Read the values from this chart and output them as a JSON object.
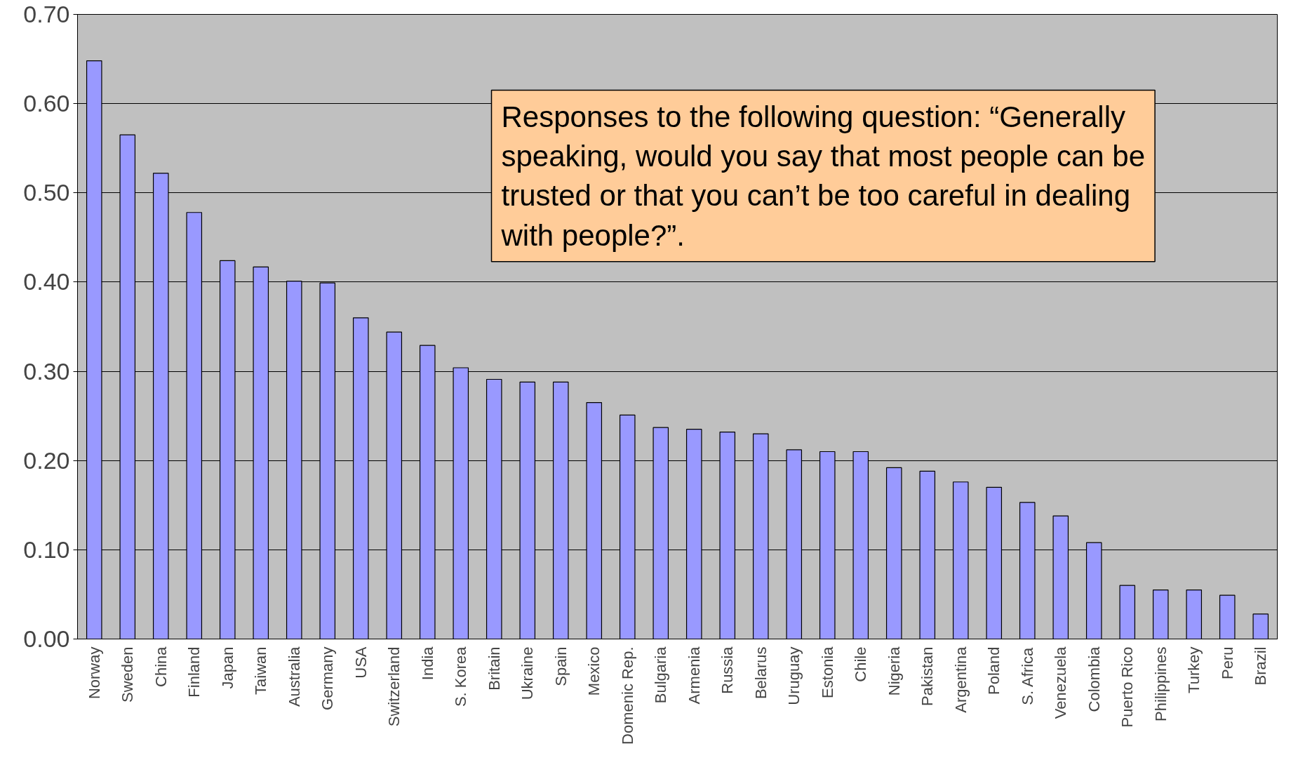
{
  "chart_data": {
    "type": "bar",
    "categories": [
      "Norway",
      "Sweden",
      "China",
      "Finland",
      "Japan",
      "Taiwan",
      "Australia",
      "Germany",
      "USA",
      "Switzerland",
      "India",
      "S. Korea",
      "Britain",
      "Ukraine",
      "Spain",
      "Mexico",
      "Domenic Rep.",
      "Bulgaria",
      "Armenia",
      "Russia",
      "Belarus",
      "Uruguay",
      "Estonia",
      "Chile",
      "Nigeria",
      "Pakistan",
      "Argentina",
      "Poland",
      "S. Africa",
      "Venezuela",
      "Colombia",
      "Puerto Rico",
      "Philippines",
      "Turkey",
      "Peru",
      "Brazil"
    ],
    "values": [
      0.648,
      0.565,
      0.522,
      0.478,
      0.424,
      0.417,
      0.401,
      0.399,
      0.36,
      0.344,
      0.329,
      0.304,
      0.291,
      0.288,
      0.288,
      0.265,
      0.251,
      0.237,
      0.235,
      0.232,
      0.23,
      0.212,
      0.21,
      0.21,
      0.192,
      0.188,
      0.176,
      0.17,
      0.153,
      0.138,
      0.108,
      0.06,
      0.055,
      0.055,
      0.049,
      0.028
    ],
    "color": "#9999ff",
    "ylim": [
      0,
      0.7
    ],
    "yticks": [
      {
        "value": 0,
        "label": "0.00"
      },
      {
        "value": 0.1,
        "label": "0.10"
      },
      {
        "value": 0.2,
        "label": "0.20"
      },
      {
        "value": 0.3,
        "label": "0.30"
      },
      {
        "value": 0.4,
        "label": "0.40"
      },
      {
        "value": 0.5,
        "label": "0.50"
      },
      {
        "value": 0.6,
        "label": "0.60"
      },
      {
        "value": 0.7,
        "label": "0.70"
      }
    ],
    "grid": "y",
    "annotations": [
      "Responses to the following question: “Generally speaking, would you say that most people can be trusted or that you can’t be too careful in dealing with people?”."
    ]
  }
}
